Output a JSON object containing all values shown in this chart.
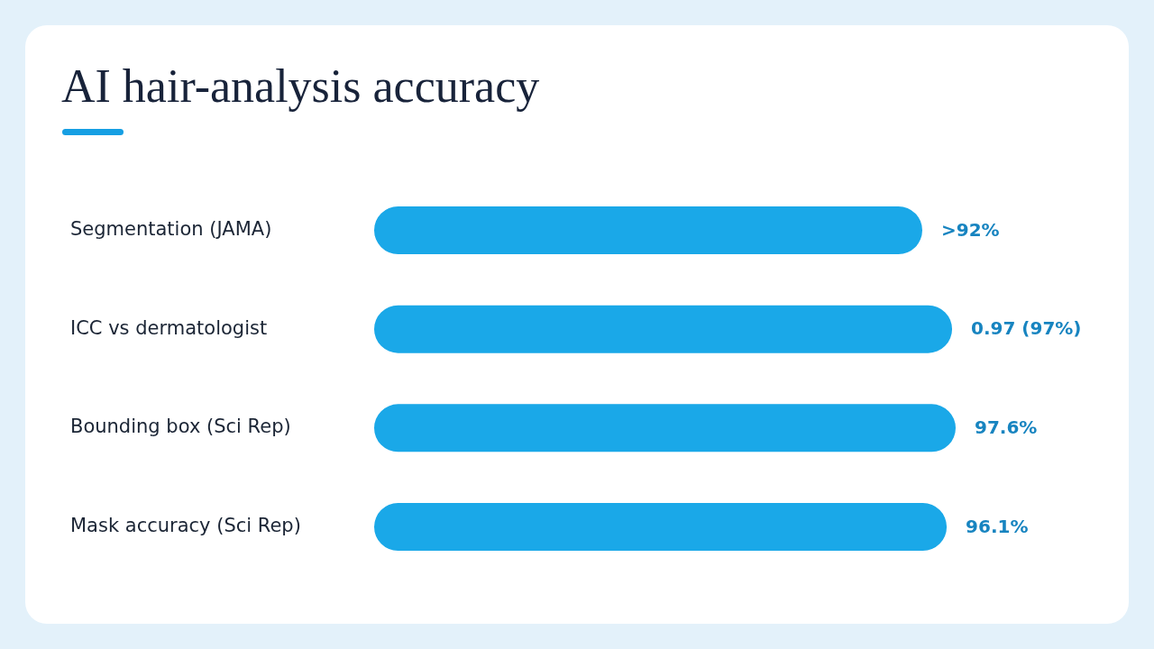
{
  "chart_data": {
    "type": "bar",
    "orientation": "horizontal",
    "title": "AI hair-analysis accuracy",
    "categories": [
      "Segmentation (JAMA)",
      "ICC vs dermatologist",
      "Bounding box (Sci Rep)",
      "Mask accuracy (Sci Rep)"
    ],
    "values": [
      92,
      97,
      97.6,
      96.1
    ],
    "value_labels": [
      ">92%",
      "0.97 (97%)",
      "97.6%",
      "96.1%"
    ],
    "color": "#1aa8e8",
    "grid": false,
    "legend": false,
    "tick_labels": "y"
  }
}
